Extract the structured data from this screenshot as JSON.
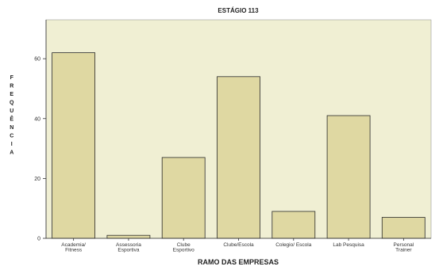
{
  "chart_data": {
    "type": "bar",
    "title": "ESTÁGIO 113",
    "xlabel": "RAMO DAS EMPRESAS",
    "ylabel": "FREQUÊNCIA",
    "categories": [
      [
        "Academia/",
        "Fitness"
      ],
      [
        "Assessoria",
        "Esportiva"
      ],
      [
        "Clube",
        "Esportivo"
      ],
      [
        "Clube/Escola"
      ],
      [
        "Colegio/ Escola"
      ],
      [
        "Lab Pesquisa"
      ],
      [
        "Personal",
        "Trainer"
      ]
    ],
    "values": [
      62,
      1,
      27,
      54,
      9,
      41,
      7
    ],
    "yticks": [
      0,
      20,
      40,
      60
    ],
    "ylim": [
      0,
      73
    ],
    "grid": false,
    "colors": {
      "plot_bg": "#f0efd3",
      "bar_fill": "#dfd8a2",
      "bar_stroke": "#2a2a2a"
    }
  }
}
